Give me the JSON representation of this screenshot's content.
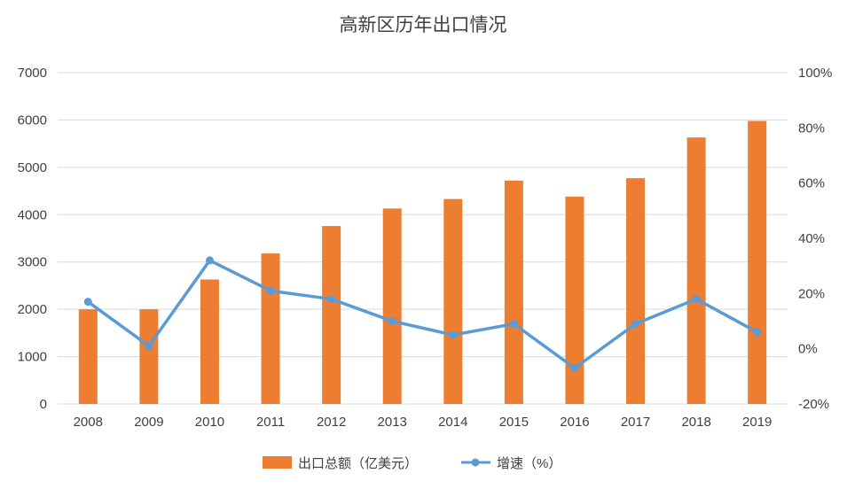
{
  "colors": {
    "bar": "#ED7D31",
    "line": "#5B9BD5",
    "title": "#C0504D",
    "grid": "#D9D9D9",
    "axis_text": "#404040",
    "background": "#FFFFFF"
  },
  "chart_data": {
    "type": "bar+line",
    "title": "高新区历年出口情况",
    "categories": [
      "2008",
      "2009",
      "2010",
      "2011",
      "2012",
      "2013",
      "2014",
      "2015",
      "2016",
      "2017",
      "2018",
      "2019"
    ],
    "series": [
      {
        "name": "出口总额（亿美元）",
        "type": "bar",
        "axis": "left",
        "color": "#ED7D31",
        "values": [
          2000,
          2000,
          2630,
          3180,
          3760,
          4130,
          4330,
          4720,
          4380,
          4770,
          5630,
          5980
        ]
      },
      {
        "name": "增速（%）",
        "type": "line",
        "axis": "right",
        "color": "#5B9BD5",
        "values": [
          17,
          1,
          32,
          21,
          18,
          10,
          5,
          9,
          -7,
          9,
          18,
          6
        ]
      }
    ],
    "left_axis": {
      "min": 0,
      "max": 7000,
      "step": 1000,
      "tick_labels": [
        "0",
        "1000",
        "2000",
        "3000",
        "4000",
        "5000",
        "6000",
        "7000"
      ]
    },
    "right_axis": {
      "min": -20,
      "max": 100,
      "step": 20,
      "tick_labels": [
        "-20%",
        "0%",
        "20%",
        "40%",
        "60%",
        "80%",
        "100%"
      ]
    },
    "grid": true,
    "legend_position": "bottom"
  }
}
